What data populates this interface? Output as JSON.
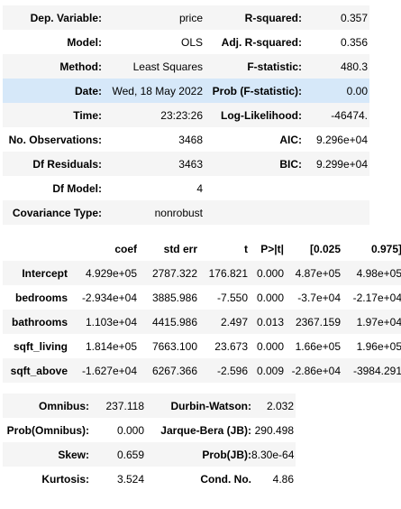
{
  "summary": {
    "rows": [
      [
        "Dep. Variable:",
        "price",
        "R-squared:",
        "0.357"
      ],
      [
        "Model:",
        "OLS",
        "Adj. R-squared:",
        "0.356"
      ],
      [
        "Method:",
        "Least Squares",
        "F-statistic:",
        "480.3"
      ],
      [
        "Date:",
        "Wed, 18 May 2022",
        "Prob (F-statistic):",
        "0.00"
      ],
      [
        "Time:",
        "23:23:26",
        "Log-Likelihood:",
        "-46474."
      ],
      [
        "No. Observations:",
        "3468",
        "AIC:",
        "9.296e+04"
      ],
      [
        "Df Residuals:",
        "3463",
        "BIC:",
        "9.299e+04"
      ],
      [
        "Df Model:",
        "4",
        "",
        ""
      ],
      [
        "Covariance Type:",
        "nonrobust",
        "",
        ""
      ]
    ]
  },
  "coefficients": {
    "headers": [
      "",
      "coef",
      "std err",
      "t",
      "P>|t|",
      "[0.025",
      "0.975]"
    ],
    "rows": [
      [
        "Intercept",
        "4.929e+05",
        "2787.322",
        "176.821",
        "0.000",
        "4.87e+05",
        "4.98e+05"
      ],
      [
        "bedrooms",
        "-2.934e+04",
        "3885.986",
        "-7.550",
        "0.000",
        "-3.7e+04",
        "-2.17e+04"
      ],
      [
        "bathrooms",
        "1.103e+04",
        "4415.986",
        "2.497",
        "0.013",
        "2367.159",
        "1.97e+04"
      ],
      [
        "sqft_living",
        "1.814e+05",
        "7663.100",
        "23.673",
        "0.000",
        "1.66e+05",
        "1.96e+05"
      ],
      [
        "sqft_above",
        "-1.627e+04",
        "6267.366",
        "-2.596",
        "0.009",
        "-2.86e+04",
        "-3984.291"
      ]
    ]
  },
  "diagnostics": {
    "rows": [
      [
        "Omnibus:",
        "237.118",
        "Durbin-Watson:",
        "2.032"
      ],
      [
        "Prob(Omnibus):",
        "0.000",
        "Jarque-Bera (JB):",
        "290.498"
      ],
      [
        "Skew:",
        "0.659",
        "Prob(JB):",
        "8.30e-64"
      ],
      [
        "Kurtosis:",
        "3.524",
        "Cond. No.",
        "4.86"
      ]
    ]
  },
  "colors": {
    "stripe": "#f5f5f5",
    "hover_highlight": "#d6e8f9"
  }
}
